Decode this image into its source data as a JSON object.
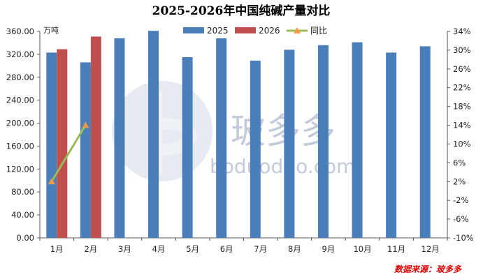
{
  "chart_data": {
    "type": "bar",
    "title": "2025-2026年中国纯碱产量对比",
    "y_unit": "万吨",
    "categories": [
      "1月",
      "2月",
      "3月",
      "4月",
      "5月",
      "6月",
      "7月",
      "8月",
      "9月",
      "10月",
      "11月",
      "12月"
    ],
    "series": [
      {
        "name": "2025",
        "color": "#4a7ebb",
        "values": [
          323,
          306,
          348,
          361,
          315,
          348,
          309,
          328,
          336,
          341,
          323,
          334
        ]
      },
      {
        "name": "2026",
        "color": "#c0504d",
        "values": [
          329,
          351,
          null,
          null,
          null,
          null,
          null,
          null,
          null,
          null,
          null,
          null
        ]
      },
      {
        "name": "同比",
        "type": "line",
        "axis": "right",
        "color": "#9bbb59",
        "marker": "triangle",
        "marker_color": "#f79646",
        "values": [
          2,
          14,
          null,
          null,
          null,
          null,
          null,
          null,
          null,
          null,
          null,
          null
        ]
      }
    ],
    "y_left": {
      "min": 0,
      "max": 360,
      "step": 40,
      "ticks": [
        "0.00",
        "40.00",
        "80.00",
        "120.00",
        "160.00",
        "200.00",
        "240.00",
        "280.00",
        "320.00",
        "360.00"
      ]
    },
    "y_right": {
      "min": -10,
      "max": 34,
      "step": 4,
      "ticks": [
        "-10%",
        "-6%",
        "-2%",
        "2%",
        "6%",
        "10%",
        "14%",
        "18%",
        "22%",
        "26%",
        "30%",
        "34%"
      ]
    },
    "legend_position": "top",
    "grid": false
  },
  "watermark": {
    "cn": "玻多多",
    "en": "boduoduo.com"
  },
  "source": "数据来源：玻多多"
}
